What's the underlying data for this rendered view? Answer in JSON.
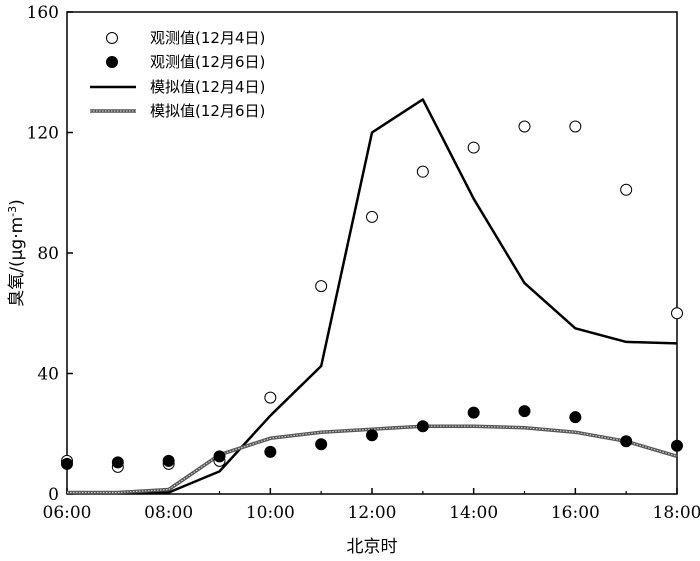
{
  "chart_data": {
    "type": "line",
    "xlabel": "北京时",
    "ylabel_main": "臭氧/(μg·m",
    "ylabel_sup": "-3",
    "ylabel_close": ")",
    "x_ticks": [
      "06:00",
      "08:00",
      "10:00",
      "12:00",
      "14:00",
      "16:00",
      "18:00"
    ],
    "x_tick_values": [
      6,
      8,
      10,
      12,
      14,
      16,
      18
    ],
    "y_ticks": [
      0,
      40,
      80,
      120,
      160
    ],
    "xlim": [
      6,
      18
    ],
    "ylim": [
      0,
      160
    ],
    "grid": false,
    "legend_position": "top-left",
    "series": [
      {
        "name": "观测值(12月4日)",
        "style": "open-circle",
        "x": [
          6,
          7,
          8,
          9,
          10,
          11,
          12,
          13,
          14,
          15,
          16,
          17,
          18
        ],
        "values": [
          11,
          9,
          10,
          11,
          32,
          69,
          92,
          107,
          115,
          122,
          122,
          101,
          60
        ]
      },
      {
        "name": "观测值(12月6日)",
        "style": "filled-circle",
        "x": [
          6,
          7,
          8,
          9,
          10,
          11,
          12,
          13,
          14,
          15,
          16,
          17,
          18
        ],
        "values": [
          10,
          10.5,
          11,
          12.5,
          14,
          16.5,
          19.5,
          22.5,
          27,
          27.5,
          25.5,
          17.5,
          16
        ]
      },
      {
        "name": "模拟值(12月4日)",
        "style": "solid-line",
        "x": [
          6,
          7,
          8,
          9,
          10,
          11,
          12,
          13,
          14,
          15,
          16,
          17,
          18
        ],
        "values": [
          0.5,
          0.5,
          0.5,
          7.5,
          26,
          42.5,
          120,
          131,
          98,
          70,
          55,
          50.5,
          50
        ]
      },
      {
        "name": "模拟值(12月6日)",
        "style": "dotted-line",
        "x": [
          6,
          7,
          8,
          9,
          10,
          11,
          12,
          13,
          14,
          15,
          16,
          17,
          18
        ],
        "values": [
          0.5,
          0.5,
          1.5,
          13,
          18.5,
          20.5,
          21.5,
          22.5,
          22.5,
          22,
          20.5,
          17.5,
          12.5
        ]
      }
    ]
  }
}
